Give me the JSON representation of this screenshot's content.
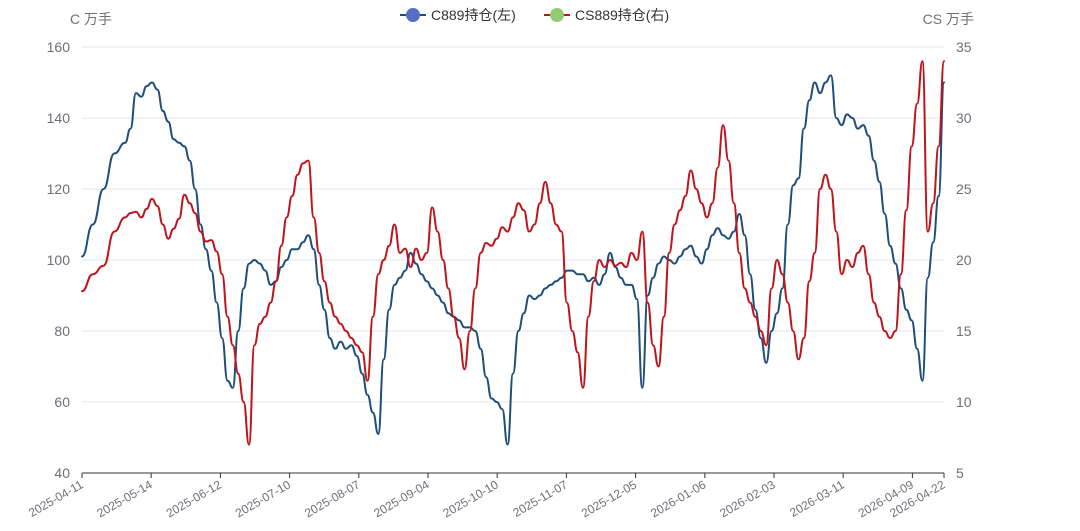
{
  "chart_data": {
    "type": "line",
    "legend_position": "top-center",
    "grid": true,
    "y_left": {
      "label": "C 万手",
      "range": [
        40,
        160
      ],
      "ticks": [
        40,
        60,
        80,
        100,
        120,
        140,
        160
      ]
    },
    "y_right": {
      "label": "CS 万手",
      "range": [
        5,
        35
      ],
      "ticks": [
        5,
        10,
        15,
        20,
        25,
        30,
        35
      ]
    },
    "x_ticks": [
      "2025-04-11",
      "2025-05-14",
      "2025-06-12",
      "2025-07-10",
      "2025-08-07",
      "2025-09-04",
      "2025-10-10",
      "2025-11-07",
      "2025-12-05",
      "2026-01-06",
      "2026-02-03",
      "2026-03-11",
      "2026-04-09",
      "2026-04-22"
    ],
    "series": [
      {
        "name": "C889持仓(左)",
        "axis": "left",
        "color": "#1f4e79",
        "legend_marker_color": "#5470c6",
        "points": [
          [
            0,
            101
          ],
          [
            2,
            110
          ],
          [
            4,
            120
          ],
          [
            6,
            130
          ],
          [
            8,
            133
          ],
          [
            9,
            137
          ],
          [
            10,
            147
          ],
          [
            11,
            146
          ],
          [
            12,
            149
          ],
          [
            13,
            150
          ],
          [
            14,
            148
          ],
          [
            15,
            142
          ],
          [
            16,
            139
          ],
          [
            17,
            134
          ],
          [
            18,
            133
          ],
          [
            19,
            132
          ],
          [
            20,
            128
          ],
          [
            21,
            120
          ],
          [
            22,
            110
          ],
          [
            23,
            103
          ],
          [
            24,
            97
          ],
          [
            25,
            88
          ],
          [
            26,
            78
          ],
          [
            27,
            66
          ],
          [
            28,
            64
          ],
          [
            29,
            80
          ],
          [
            30,
            92
          ],
          [
            31,
            99
          ],
          [
            32,
            100
          ],
          [
            33,
            99
          ],
          [
            34,
            97
          ],
          [
            35,
            93
          ],
          [
            36,
            94
          ],
          [
            37,
            98
          ],
          [
            38,
            100
          ],
          [
            39,
            103
          ],
          [
            40,
            103
          ],
          [
            41,
            105
          ],
          [
            42,
            107
          ],
          [
            43,
            103
          ],
          [
            44,
            93
          ],
          [
            45,
            86
          ],
          [
            46,
            78
          ],
          [
            47,
            75
          ],
          [
            48,
            77
          ],
          [
            49,
            75
          ],
          [
            50,
            76
          ],
          [
            51,
            73
          ],
          [
            52,
            68
          ],
          [
            53,
            62
          ],
          [
            54,
            57
          ],
          [
            55,
            51
          ],
          [
            56,
            72
          ],
          [
            57,
            86
          ],
          [
            58,
            93
          ],
          [
            59,
            95
          ],
          [
            60,
            97
          ],
          [
            61,
            102
          ],
          [
            62,
            99
          ],
          [
            63,
            96
          ],
          [
            64,
            94
          ],
          [
            65,
            92
          ],
          [
            66,
            90
          ],
          [
            67,
            88
          ],
          [
            68,
            85
          ],
          [
            69,
            84
          ],
          [
            70,
            83
          ],
          [
            71,
            81
          ],
          [
            72,
            81
          ],
          [
            73,
            80
          ],
          [
            74,
            75
          ],
          [
            75,
            67
          ],
          [
            76,
            61
          ],
          [
            77,
            60
          ],
          [
            78,
            58
          ],
          [
            79,
            48
          ],
          [
            80,
            68
          ],
          [
            81,
            80
          ],
          [
            82,
            85
          ],
          [
            83,
            90
          ],
          [
            84,
            89
          ],
          [
            85,
            90
          ],
          [
            86,
            92
          ],
          [
            87,
            93
          ],
          [
            88,
            94
          ],
          [
            89,
            95
          ],
          [
            90,
            97
          ],
          [
            91,
            97
          ],
          [
            92,
            96
          ],
          [
            93,
            96
          ],
          [
            94,
            94
          ],
          [
            95,
            95
          ],
          [
            96,
            93
          ],
          [
            97,
            96
          ],
          [
            98,
            102
          ],
          [
            99,
            98
          ],
          [
            100,
            95
          ],
          [
            101,
            93
          ],
          [
            102,
            93
          ],
          [
            103,
            89
          ],
          [
            104,
            64
          ],
          [
            105,
            90
          ],
          [
            106,
            95
          ],
          [
            107,
            99
          ],
          [
            108,
            101
          ],
          [
            109,
            100
          ],
          [
            110,
            99
          ],
          [
            111,
            101
          ],
          [
            112,
            103
          ],
          [
            113,
            104
          ],
          [
            114,
            101
          ],
          [
            115,
            99
          ],
          [
            116,
            103
          ],
          [
            117,
            107
          ],
          [
            118,
            109
          ],
          [
            119,
            107
          ],
          [
            120,
            106
          ],
          [
            121,
            108
          ],
          [
            122,
            113
          ],
          [
            123,
            107
          ],
          [
            124,
            96
          ],
          [
            125,
            86
          ],
          [
            126,
            78
          ],
          [
            127,
            71
          ],
          [
            128,
            80
          ],
          [
            129,
            85
          ],
          [
            130,
            92
          ],
          [
            131,
            110
          ],
          [
            132,
            121
          ],
          [
            133,
            123
          ],
          [
            134,
            137
          ],
          [
            135,
            145
          ],
          [
            136,
            150
          ],
          [
            137,
            147
          ],
          [
            138,
            150
          ],
          [
            139,
            152
          ],
          [
            140,
            140
          ],
          [
            141,
            138
          ],
          [
            142,
            141
          ],
          [
            143,
            140
          ],
          [
            144,
            137
          ],
          [
            145,
            138
          ],
          [
            146,
            135
          ],
          [
            147,
            128
          ],
          [
            148,
            122
          ],
          [
            149,
            113
          ],
          [
            150,
            104
          ],
          [
            151,
            99
          ],
          [
            152,
            92
          ],
          [
            153,
            86
          ],
          [
            154,
            83
          ],
          [
            155,
            75
          ],
          [
            156,
            66
          ],
          [
            157,
            95
          ],
          [
            158,
            105
          ],
          [
            159,
            118
          ],
          [
            160,
            150
          ]
        ]
      },
      {
        "name": "CS889持仓(右)",
        "axis": "right",
        "color": "#c0141c",
        "legend_marker_color": "#91cc75",
        "points": [
          [
            0,
            17.8
          ],
          [
            2,
            19.0
          ],
          [
            4,
            19.6
          ],
          [
            6,
            22.0
          ],
          [
            8,
            23.0
          ],
          [
            9,
            23.3
          ],
          [
            10,
            23.4
          ],
          [
            11,
            23.0
          ],
          [
            12,
            23.6
          ],
          [
            13,
            24.3
          ],
          [
            14,
            23.8
          ],
          [
            15,
            22.5
          ],
          [
            16,
            21.5
          ],
          [
            17,
            22.2
          ],
          [
            18,
            22.9
          ],
          [
            19,
            24.6
          ],
          [
            20,
            24.0
          ],
          [
            21,
            23.3
          ],
          [
            22,
            22.0
          ],
          [
            23,
            21.3
          ],
          [
            24,
            21.4
          ],
          [
            25,
            20.6
          ],
          [
            26,
            19.0
          ],
          [
            27,
            16.0
          ],
          [
            28,
            14.0
          ],
          [
            29,
            12.0
          ],
          [
            30,
            10.0
          ],
          [
            31,
            7.0
          ],
          [
            32,
            14.0
          ],
          [
            33,
            15.5
          ],
          [
            34,
            16.0
          ],
          [
            35,
            17.0
          ],
          [
            36,
            18.5
          ],
          [
            37,
            21.0
          ],
          [
            38,
            23.0
          ],
          [
            39,
            24.5
          ],
          [
            40,
            26.0
          ],
          [
            41,
            26.8
          ],
          [
            42,
            27.0
          ],
          [
            43,
            23.0
          ],
          [
            44,
            20.5
          ],
          [
            45,
            18.5
          ],
          [
            46,
            17.0
          ],
          [
            47,
            16.0
          ],
          [
            48,
            15.5
          ],
          [
            49,
            15.0
          ],
          [
            50,
            14.5
          ],
          [
            51,
            14.0
          ],
          [
            52,
            13.5
          ],
          [
            53,
            11.5
          ],
          [
            54,
            16.0
          ],
          [
            55,
            19.0
          ],
          [
            56,
            20.0
          ],
          [
            57,
            21.0
          ],
          [
            58,
            22.5
          ],
          [
            59,
            20.5
          ],
          [
            60,
            20.8
          ],
          [
            61,
            19.5
          ],
          [
            62,
            20.8
          ],
          [
            63,
            20.0
          ],
          [
            64,
            20.5
          ],
          [
            65,
            23.7
          ],
          [
            66,
            22.0
          ],
          [
            67,
            20.0
          ],
          [
            68,
            18.0
          ],
          [
            69,
            16.0
          ],
          [
            70,
            14.5
          ],
          [
            71,
            12.3
          ],
          [
            72,
            15.0
          ],
          [
            73,
            18.0
          ],
          [
            74,
            20.5
          ],
          [
            75,
            21.2
          ],
          [
            76,
            21.0
          ],
          [
            77,
            21.5
          ],
          [
            78,
            22.3
          ],
          [
            79,
            22.0
          ],
          [
            80,
            23.0
          ],
          [
            81,
            24.0
          ],
          [
            82,
            23.5
          ],
          [
            83,
            22.0
          ],
          [
            84,
            22.5
          ],
          [
            85,
            24.0
          ],
          [
            86,
            25.5
          ],
          [
            87,
            24.0
          ],
          [
            88,
            22.5
          ],
          [
            89,
            22.0
          ],
          [
            90,
            17.0
          ],
          [
            91,
            15.0
          ],
          [
            92,
            13.5
          ],
          [
            93,
            11.0
          ],
          [
            94,
            16.0
          ],
          [
            95,
            18.5
          ],
          [
            96,
            20.0
          ],
          [
            97,
            19.5
          ],
          [
            98,
            20.0
          ],
          [
            99,
            19.6
          ],
          [
            100,
            19.8
          ],
          [
            101,
            19.5
          ],
          [
            102,
            20.5
          ],
          [
            103,
            20.0
          ],
          [
            104,
            22.0
          ],
          [
            105,
            17.0
          ],
          [
            106,
            14.0
          ],
          [
            107,
            12.5
          ],
          [
            108,
            16.0
          ],
          [
            109,
            20.5
          ],
          [
            110,
            22.5
          ],
          [
            111,
            23.5
          ],
          [
            112,
            24.5
          ],
          [
            113,
            26.3
          ],
          [
            114,
            25.0
          ],
          [
            115,
            24.0
          ],
          [
            116,
            23.0
          ],
          [
            117,
            24.0
          ],
          [
            118,
            26.5
          ],
          [
            119,
            29.5
          ],
          [
            120,
            27.0
          ],
          [
            121,
            24.0
          ],
          [
            122,
            20.5
          ],
          [
            123,
            18.0
          ],
          [
            124,
            17.0
          ],
          [
            125,
            16.0
          ],
          [
            126,
            15.0
          ],
          [
            127,
            14.0
          ],
          [
            128,
            18.0
          ],
          [
            129,
            20.0
          ],
          [
            130,
            19.0
          ],
          [
            131,
            17.0
          ],
          [
            132,
            15.0
          ],
          [
            133,
            13.0
          ],
          [
            134,
            14.5
          ],
          [
            135,
            18.5
          ],
          [
            136,
            20.5
          ],
          [
            137,
            25.0
          ],
          [
            138,
            26.0
          ],
          [
            139,
            25.0
          ],
          [
            140,
            22.0
          ],
          [
            141,
            19.0
          ],
          [
            142,
            20.0
          ],
          [
            143,
            19.5
          ],
          [
            144,
            20.5
          ],
          [
            145,
            21.0
          ],
          [
            146,
            19.0
          ],
          [
            147,
            17.0
          ],
          [
            148,
            16.0
          ],
          [
            149,
            15.0
          ],
          [
            150,
            14.5
          ],
          [
            151,
            15.0
          ],
          [
            152,
            19.0
          ],
          [
            153,
            23.5
          ],
          [
            154,
            28.0
          ],
          [
            155,
            31.0
          ],
          [
            156,
            34.0
          ],
          [
            157,
            22.0
          ],
          [
            158,
            24.0
          ],
          [
            159,
            28.0
          ],
          [
            160,
            34.0
          ]
        ]
      }
    ]
  }
}
